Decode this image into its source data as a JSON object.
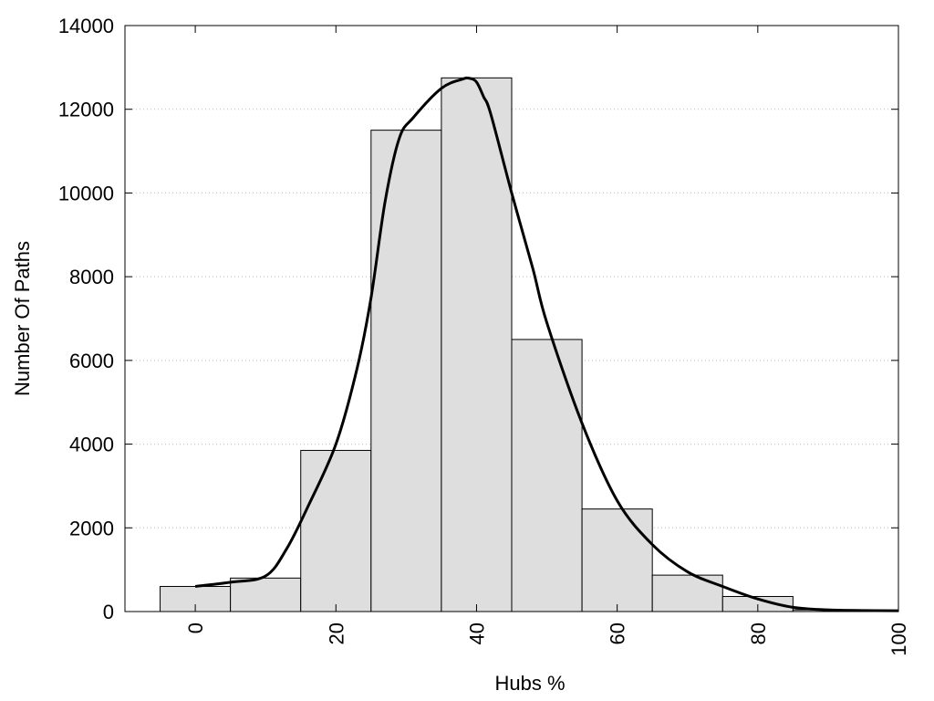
{
  "chart_data": {
    "type": "bar",
    "title": "",
    "xlabel": "Hubs %",
    "ylabel": "Number Of Paths",
    "xlim": [
      -10,
      100
    ],
    "ylim": [
      0,
      14000
    ],
    "x_ticks": [
      0,
      20,
      40,
      60,
      80,
      100
    ],
    "y_ticks": [
      0,
      2000,
      4000,
      6000,
      8000,
      10000,
      12000,
      14000
    ],
    "grid": "horizontal dotted",
    "bin_width": 10,
    "bins": [
      {
        "x": 0,
        "value": 600
      },
      {
        "x": 10,
        "value": 800
      },
      {
        "x": 20,
        "value": 3850
      },
      {
        "x": 30,
        "value": 11500
      },
      {
        "x": 40,
        "value": 12750
      },
      {
        "x": 50,
        "value": 6500
      },
      {
        "x": 60,
        "value": 2450
      },
      {
        "x": 70,
        "value": 870
      },
      {
        "x": 80,
        "value": 360
      },
      {
        "x": 90,
        "value": 40
      }
    ],
    "curve": {
      "x": [
        0,
        5,
        10,
        13,
        16,
        20,
        23,
        25,
        27,
        29,
        31,
        35,
        38,
        39,
        40,
        41,
        42,
        45,
        48,
        50,
        55,
        60,
        65,
        70,
        75,
        80,
        85,
        90,
        95,
        100
      ],
      "y": [
        600,
        700,
        850,
        1500,
        2500,
        4000,
        5800,
        7500,
        9800,
        11300,
        11800,
        12500,
        12720,
        12740,
        12650,
        12300,
        11900,
        10000,
        8200,
        6900,
        4500,
        2650,
        1600,
        950,
        600,
        300,
        100,
        40,
        25,
        20
      ]
    },
    "colors": {
      "bar_fill": "#dedede",
      "bar_stroke": "#000000",
      "curve": "#000000",
      "grid": "#bbbbbb"
    }
  }
}
